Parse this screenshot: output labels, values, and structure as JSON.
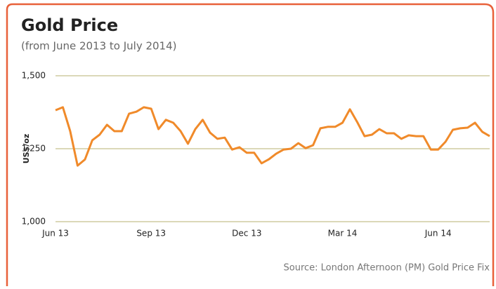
{
  "chart_data": {
    "type": "line",
    "title": "Gold Price",
    "subtitle": "(from June 2013 to July 2014)",
    "y_label": "US$/oz",
    "source": "Source: London Afternoon (PM) Gold Price Fix",
    "categories": [
      "Jun 13",
      null,
      null,
      null,
      null,
      null,
      null,
      null,
      null,
      null,
      null,
      null,
      null,
      "Sep 13",
      null,
      null,
      null,
      null,
      null,
      null,
      null,
      null,
      null,
      null,
      null,
      null,
      "Dec 13",
      null,
      null,
      null,
      null,
      null,
      null,
      null,
      null,
      null,
      null,
      null,
      null,
      "Mar 14",
      null,
      null,
      null,
      null,
      null,
      null,
      null,
      null,
      null,
      null,
      null,
      null,
      "Jun 14",
      null,
      null,
      null,
      null,
      null,
      null,
      null
    ],
    "series": [
      {
        "name": "Gold Price",
        "color": "#f08a2a",
        "values": [
          1382,
          1392,
          1310,
          1192,
          1213,
          1279,
          1298,
          1332,
          1310,
          1310,
          1370,
          1377,
          1392,
          1387,
          1317,
          1349,
          1339,
          1310,
          1267,
          1317,
          1349,
          1305,
          1284,
          1288,
          1247,
          1255,
          1236,
          1236,
          1200,
          1214,
          1233,
          1247,
          1250,
          1269,
          1252,
          1262,
          1320,
          1325,
          1325,
          1339,
          1385,
          1341,
          1293,
          1298,
          1317,
          1303,
          1303,
          1284,
          1296,
          1293,
          1293,
          1247,
          1247,
          1274,
          1315,
          1320,
          1322,
          1339,
          1308,
          1293
        ]
      }
    ],
    "ylim": [
      1000,
      1500
    ],
    "yticks": [
      {
        "value": 1000,
        "label": "1,000"
      },
      {
        "value": 1250,
        "label": "1,250"
      },
      {
        "value": 1500,
        "label": "1,500"
      }
    ],
    "grid": true
  }
}
